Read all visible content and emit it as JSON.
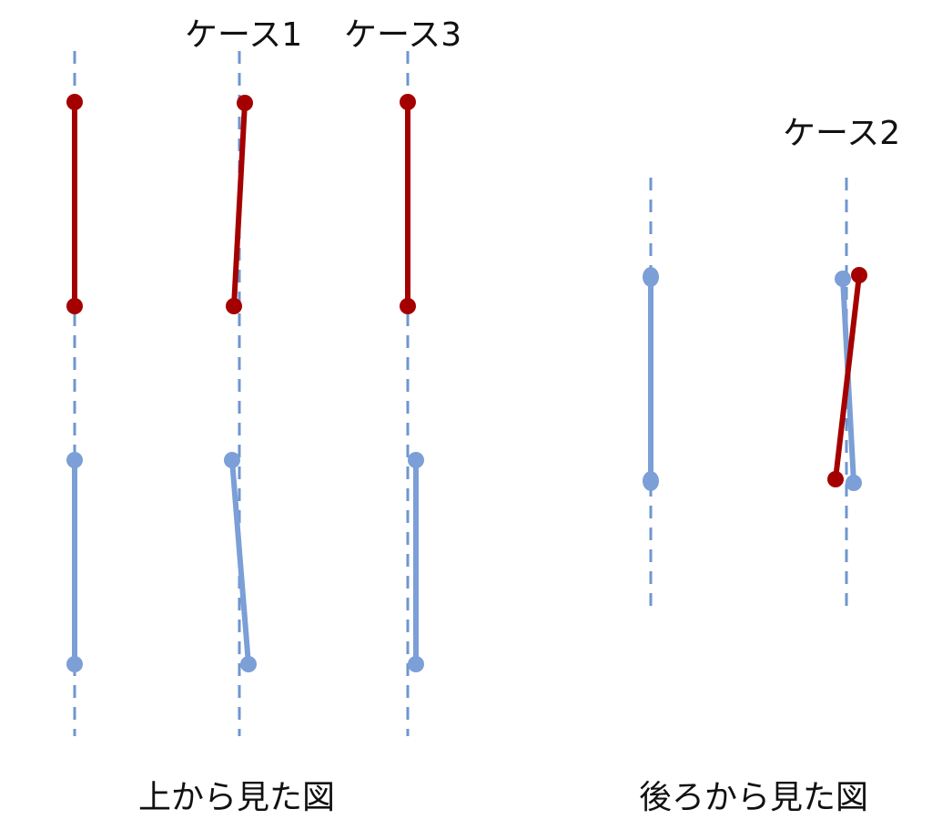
{
  "labels": {
    "case1": "ケース1",
    "case3": "ケース3",
    "case2": "ケース2",
    "top_view": "上から見た図",
    "rear_view": "後ろから見た図"
  },
  "colors": {
    "guide": "#6f96cf",
    "red_rod": "#a50000",
    "blue_rod": "#7b9fd6",
    "text": "#111111"
  }
}
